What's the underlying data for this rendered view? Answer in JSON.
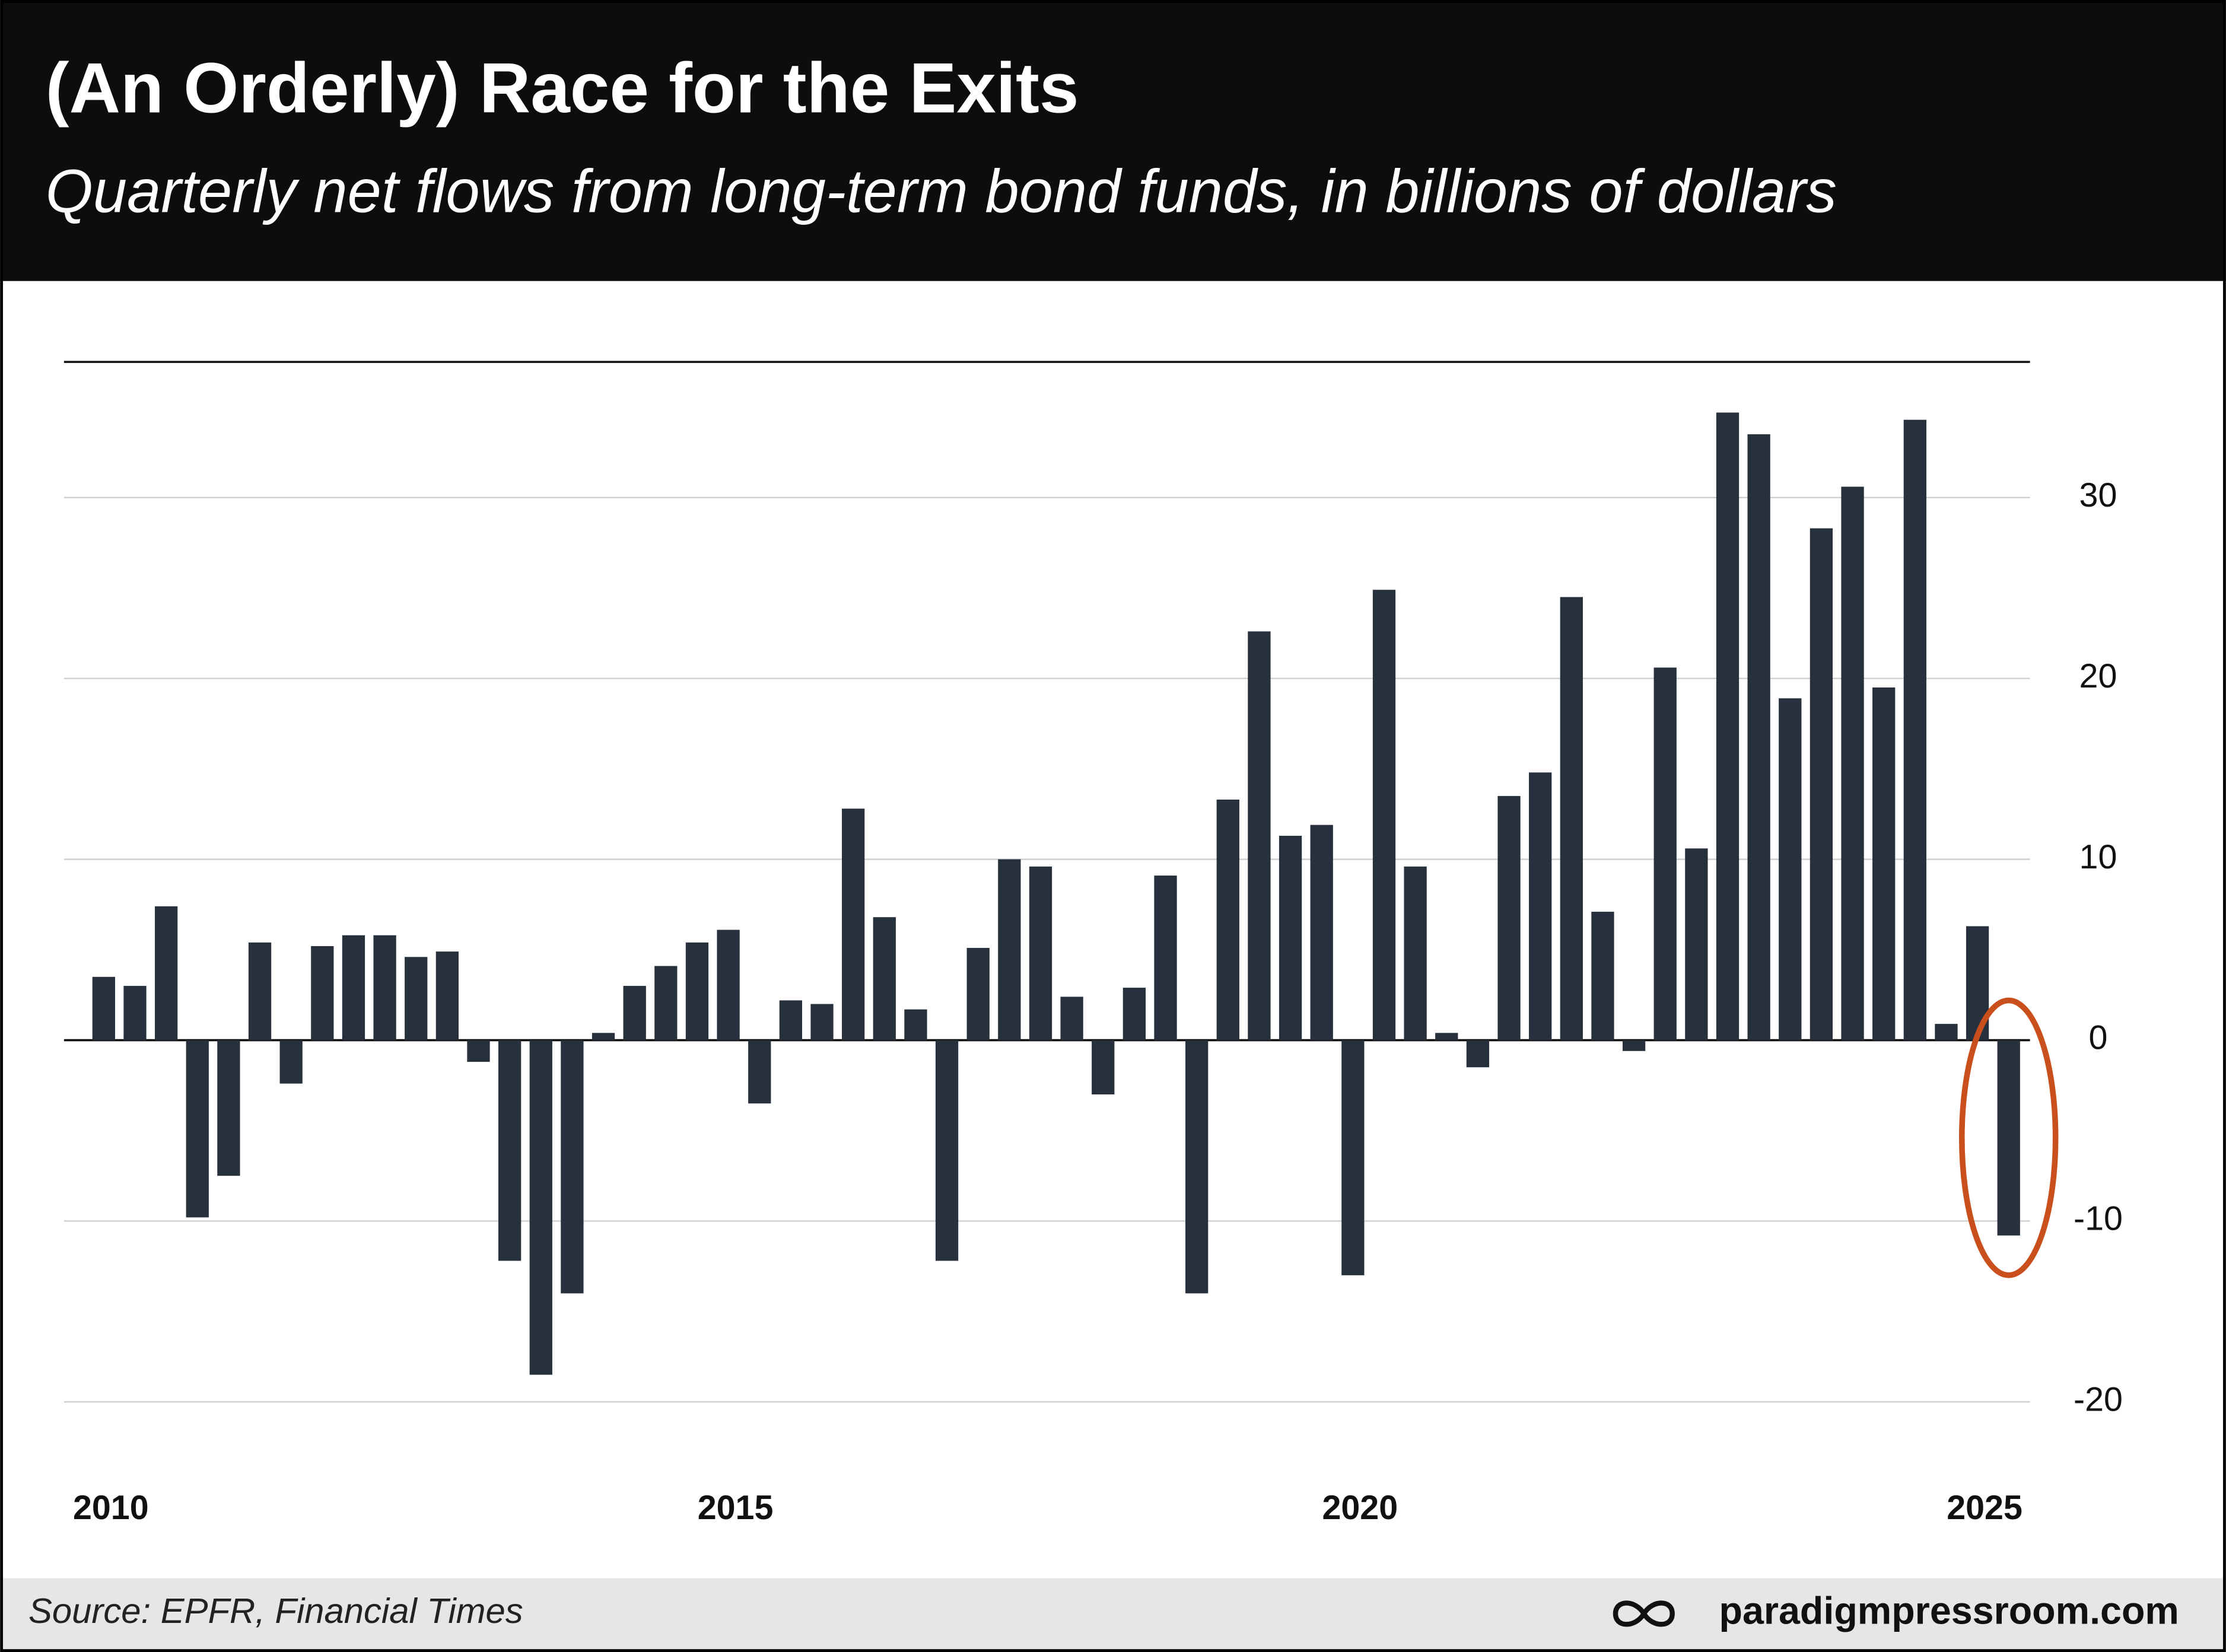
{
  "chart_data": {
    "type": "bar",
    "title": "(An Orderly) Race for the Exits",
    "subtitle": "Quarterly net flows from long-term bond funds, in billions of dollars",
    "source": "Source: EPFR, Financial Times",
    "brand": "paradigmpressroom.com",
    "categories": [
      "2010",
      null,
      null,
      null,
      null,
      null,
      null,
      null,
      null,
      null,
      null,
      null,
      null,
      null,
      null,
      null,
      null,
      null,
      null,
      null,
      "2015",
      null,
      null,
      null,
      null,
      null,
      null,
      null,
      null,
      null,
      null,
      null,
      null,
      null,
      null,
      null,
      null,
      null,
      null,
      null,
      "2020",
      null,
      null,
      null,
      null,
      null,
      null,
      null,
      null,
      null,
      null,
      null,
      null,
      null,
      null,
      null,
      null,
      null,
      null,
      null,
      "2025",
      null
    ],
    "values": [
      3.5,
      3.0,
      7.4,
      -9.8,
      -7.5,
      5.4,
      -2.4,
      5.2,
      5.8,
      5.8,
      4.6,
      4.9,
      -1.2,
      -12.2,
      -18.5,
      -14.0,
      0.4,
      3.0,
      4.1,
      5.4,
      6.1,
      -3.5,
      2.2,
      2.0,
      12.8,
      6.8,
      1.7,
      -12.2,
      5.1,
      10.0,
      9.6,
      2.4,
      -3.0,
      2.9,
      9.1,
      -14.0,
      13.3,
      22.6,
      11.3,
      11.9,
      -13.0,
      24.9,
      9.6,
      0.4,
      -1.5,
      13.5,
      14.8,
      24.5,
      7.1,
      -0.6,
      20.6,
      10.6,
      34.7,
      33.5,
      18.9,
      28.3,
      30.6,
      19.5,
      34.3,
      0.9,
      6.3,
      -10.8
    ],
    "color": "#27313d",
    "highlight_color": "#c9501c",
    "ylim": [
      -23,
      37.5
    ],
    "yticks": [
      -20,
      -10,
      0,
      10,
      20,
      30
    ],
    "grid": true
  }
}
